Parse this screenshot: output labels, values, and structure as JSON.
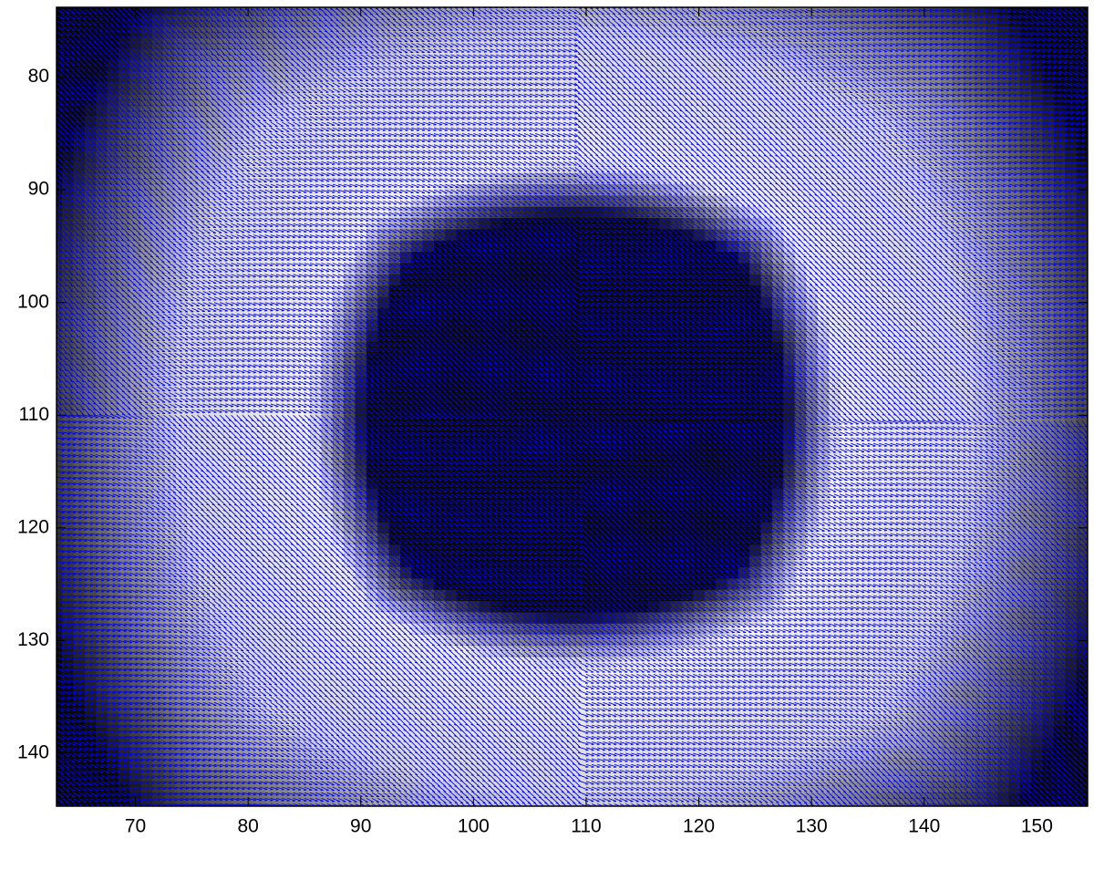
{
  "chart_data": {
    "type": "quiver",
    "xlim": [
      63,
      154.5
    ],
    "ylim": [
      73.8,
      144.7
    ],
    "y_reversed": true,
    "xticks": [
      70,
      80,
      90,
      100,
      110,
      120,
      130,
      140,
      150
    ],
    "yticks": [
      80,
      90,
      100,
      110,
      120,
      130,
      140
    ],
    "color": "#0000ff"
  }
}
